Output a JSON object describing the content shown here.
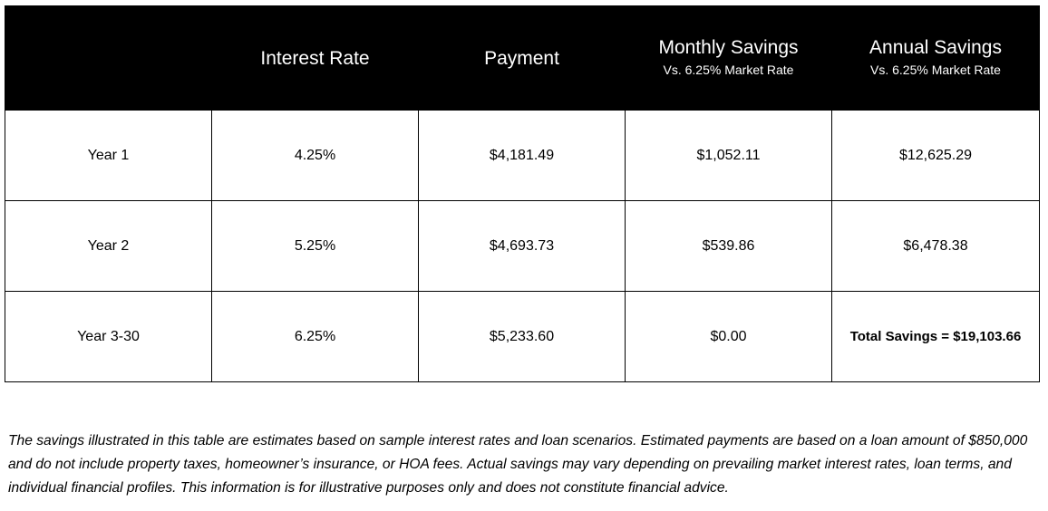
{
  "table": {
    "headers": [
      {
        "title": "",
        "subtitle": ""
      },
      {
        "title": "Interest Rate",
        "subtitle": ""
      },
      {
        "title": "Payment",
        "subtitle": ""
      },
      {
        "title": "Monthly Savings",
        "subtitle": "Vs. 6.25% Market Rate"
      },
      {
        "title": "Annual Savings",
        "subtitle": "Vs. 6.25% Market Rate"
      }
    ],
    "rows": [
      {
        "label": "Year 1",
        "rate": "4.25%",
        "payment": "$4,181.49",
        "monthly": "$1,052.11",
        "annual": "$12,625.29"
      },
      {
        "label": "Year 2",
        "rate": "5.25%",
        "payment": "$4,693.73",
        "monthly": "$539.86",
        "annual": "$6,478.38"
      },
      {
        "label": "Year 3-30",
        "rate": "6.25%",
        "payment": "$5,233.60",
        "monthly": "$0.00",
        "annual": "Total Savings = $19,103.66"
      }
    ]
  },
  "disclaimer": "The savings illustrated in this table are estimates based on sample interest rates and loan scenarios. Estimated payments are based on a loan amount of $850,000 and do not include property taxes, homeowner’s insurance, or HOA fees. Actual savings may vary depending on prevailing market interest rates, loan terms, and individual financial profiles. This information is for illustrative purposes only and does not constitute financial advice.",
  "colors": {
    "header_background": "#000000",
    "header_text": "#ffffff",
    "border": "#000000",
    "body_text": "#000000"
  }
}
